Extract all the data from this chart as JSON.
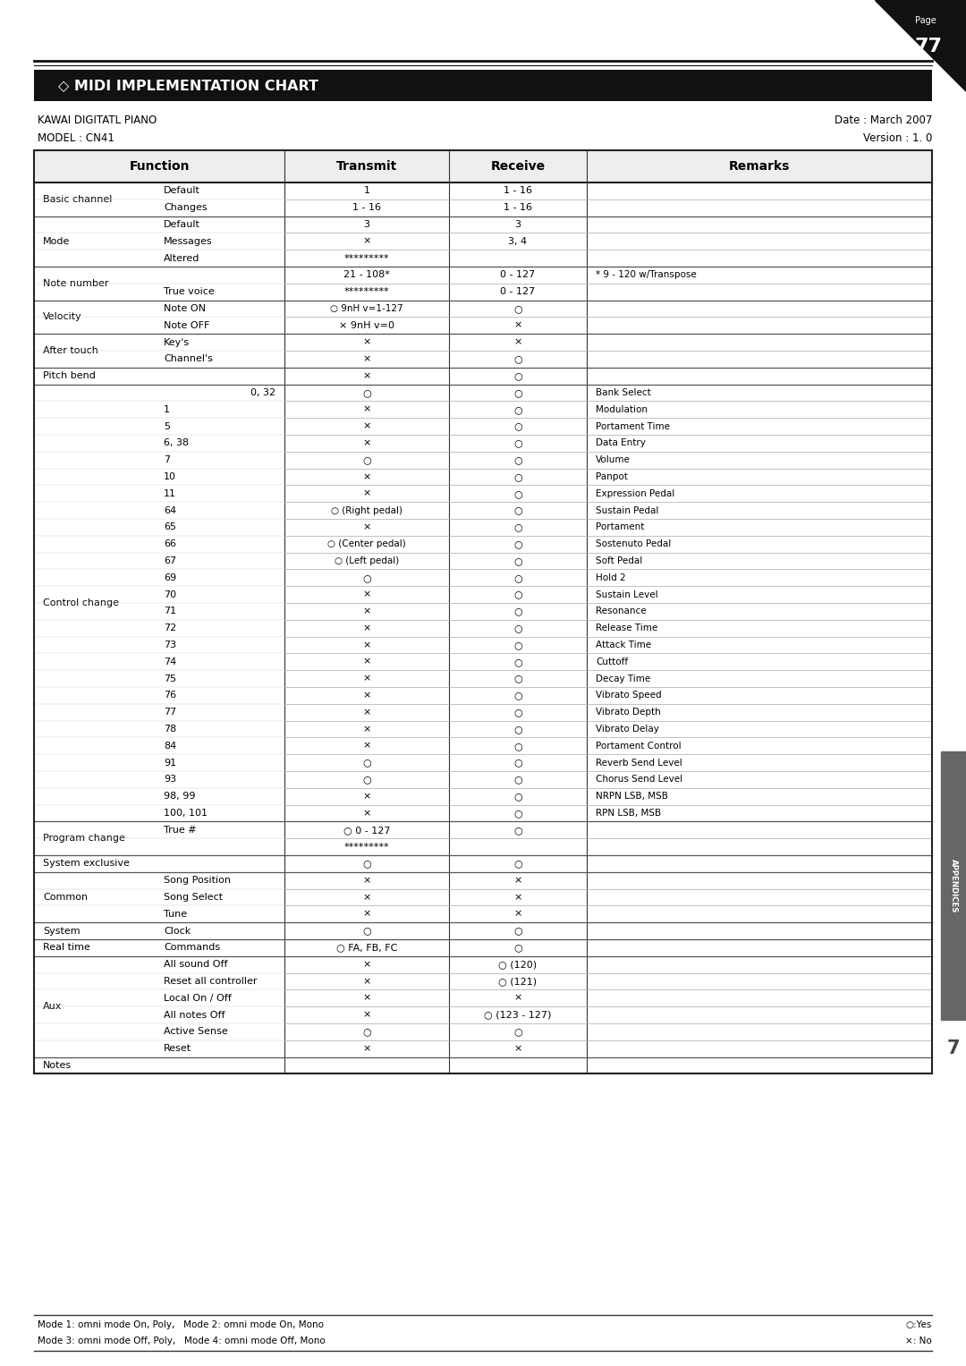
{
  "page_num": "77",
  "title": "◇ MIDI IMPLEMENTATION CHART",
  "device_name": "KAWAI DIGITATL PIANO",
  "model": "MODEL : CN41",
  "date": "Date : March 2007",
  "version": "Version : 1. 0",
  "col_headers": [
    "Function",
    "Transmit",
    "Receive",
    "Remarks"
  ],
  "rows": [
    {
      "func1": "Basic channel",
      "func2": "Default",
      "transmit": "1",
      "receive": "1 - 16",
      "remarks": ""
    },
    {
      "func1": "",
      "func2": "Changes",
      "transmit": "1 - 16",
      "receive": "1 - 16",
      "remarks": ""
    },
    {
      "func1": "Mode",
      "func2": "Default",
      "transmit": "3",
      "receive": "3",
      "remarks": ""
    },
    {
      "func1": "",
      "func2": "Messages",
      "transmit": "×",
      "receive": "3, 4",
      "remarks": ""
    },
    {
      "func1": "",
      "func2": "Altered",
      "transmit": "*********",
      "receive": "",
      "remarks": ""
    },
    {
      "func1": "Note number",
      "func2": "",
      "transmit": "21 - 108*",
      "receive": "0 - 127",
      "remarks": "* 9 - 120 w/Transpose"
    },
    {
      "func1": "",
      "func2": "True voice",
      "transmit": "*********",
      "receive": "0 - 127",
      "remarks": ""
    },
    {
      "func1": "Velocity",
      "func2": "Note ON",
      "transmit": "○ 9nH v=1-127",
      "receive": "○",
      "remarks": ""
    },
    {
      "func1": "",
      "func2": "Note OFF",
      "transmit": "× 9nH v=0",
      "receive": "×",
      "remarks": ""
    },
    {
      "func1": "After touch",
      "func2": "Key's",
      "transmit": "×",
      "receive": "×",
      "remarks": ""
    },
    {
      "func1": "",
      "func2": "Channel's",
      "transmit": "×",
      "receive": "○",
      "remarks": ""
    },
    {
      "func1": "Pitch bend",
      "func2": "",
      "transmit": "×",
      "receive": "○",
      "remarks": ""
    },
    {
      "func1": "Control change",
      "func2": "0, 32",
      "transmit": "○",
      "receive": "○",
      "remarks": "Bank Select"
    },
    {
      "func1": "",
      "func2": "1",
      "transmit": "×",
      "receive": "○",
      "remarks": "Modulation"
    },
    {
      "func1": "",
      "func2": "5",
      "transmit": "×",
      "receive": "○",
      "remarks": "Portament Time"
    },
    {
      "func1": "",
      "func2": "6, 38",
      "transmit": "×",
      "receive": "○",
      "remarks": "Data Entry"
    },
    {
      "func1": "",
      "func2": "7",
      "transmit": "○",
      "receive": "○",
      "remarks": "Volume"
    },
    {
      "func1": "",
      "func2": "10",
      "transmit": "×",
      "receive": "○",
      "remarks": "Panpot"
    },
    {
      "func1": "",
      "func2": "11",
      "transmit": "×",
      "receive": "○",
      "remarks": "Expression Pedal"
    },
    {
      "func1": "",
      "func2": "64",
      "transmit": "○ (Right pedal)",
      "receive": "○",
      "remarks": "Sustain Pedal"
    },
    {
      "func1": "",
      "func2": "65",
      "transmit": "×",
      "receive": "○",
      "remarks": "Portament"
    },
    {
      "func1": "",
      "func2": "66",
      "transmit": "○ (Center pedal)",
      "receive": "○",
      "remarks": "Sostenuto Pedal"
    },
    {
      "func1": "",
      "func2": "67",
      "transmit": "○ (Left pedal)",
      "receive": "○",
      "remarks": "Soft Pedal"
    },
    {
      "func1": "",
      "func2": "69",
      "transmit": "○",
      "receive": "○",
      "remarks": "Hold 2"
    },
    {
      "func1": "",
      "func2": "70",
      "transmit": "×",
      "receive": "○",
      "remarks": "Sustain Level"
    },
    {
      "func1": "",
      "func2": "71",
      "transmit": "×",
      "receive": "○",
      "remarks": "Resonance"
    },
    {
      "func1": "",
      "func2": "72",
      "transmit": "×",
      "receive": "○",
      "remarks": "Release Time"
    },
    {
      "func1": "",
      "func2": "73",
      "transmit": "×",
      "receive": "○",
      "remarks": "Attack Time"
    },
    {
      "func1": "",
      "func2": "74",
      "transmit": "×",
      "receive": "○",
      "remarks": "Cuttoff"
    },
    {
      "func1": "",
      "func2": "75",
      "transmit": "×",
      "receive": "○",
      "remarks": "Decay Time"
    },
    {
      "func1": "",
      "func2": "76",
      "transmit": "×",
      "receive": "○",
      "remarks": "Vibrato Speed"
    },
    {
      "func1": "",
      "func2": "77",
      "transmit": "×",
      "receive": "○",
      "remarks": "Vibrato Depth"
    },
    {
      "func1": "",
      "func2": "78",
      "transmit": "×",
      "receive": "○",
      "remarks": "Vibrato Delay"
    },
    {
      "func1": "",
      "func2": "84",
      "transmit": "×",
      "receive": "○",
      "remarks": "Portament Control"
    },
    {
      "func1": "",
      "func2": "91",
      "transmit": "○",
      "receive": "○",
      "remarks": "Reverb Send Level"
    },
    {
      "func1": "",
      "func2": "93",
      "transmit": "○",
      "receive": "○",
      "remarks": "Chorus Send Level"
    },
    {
      "func1": "",
      "func2": "98, 99",
      "transmit": "×",
      "receive": "○",
      "remarks": "NRPN LSB, MSB"
    },
    {
      "func1": "",
      "func2": "100, 101",
      "transmit": "×",
      "receive": "○",
      "remarks": "RPN LSB, MSB"
    },
    {
      "func1": "Program change",
      "func2": "True #",
      "transmit": "○ 0 - 127",
      "receive": "○",
      "remarks": ""
    },
    {
      "func1": "",
      "func2": "",
      "transmit": "*********",
      "receive": "",
      "remarks": ""
    },
    {
      "func1": "System exclusive",
      "func2": "",
      "transmit": "○",
      "receive": "○",
      "remarks": ""
    },
    {
      "func1": "Common",
      "func2": "Song Position",
      "transmit": "×",
      "receive": "×",
      "remarks": ""
    },
    {
      "func1": "",
      "func2": "Song Select",
      "transmit": "×",
      "receive": "×",
      "remarks": ""
    },
    {
      "func1": "",
      "func2": "Tune",
      "transmit": "×",
      "receive": "×",
      "remarks": ""
    },
    {
      "func1": "System",
      "func2": "Clock",
      "transmit": "○",
      "receive": "○",
      "remarks": ""
    },
    {
      "func1": "Real time",
      "func2": "Commands",
      "transmit": "○ FA, FB, FC",
      "receive": "○",
      "remarks": ""
    },
    {
      "func1": "Aux",
      "func2": "All sound Off",
      "transmit": "×",
      "receive": "○ (120)",
      "remarks": ""
    },
    {
      "func1": "",
      "func2": "Reset all controller",
      "transmit": "×",
      "receive": "○ (121)",
      "remarks": ""
    },
    {
      "func1": "",
      "func2": "Local On / Off",
      "transmit": "×",
      "receive": "×",
      "remarks": ""
    },
    {
      "func1": "",
      "func2": "All notes Off",
      "transmit": "×",
      "receive": "○ (123 - 127)",
      "remarks": ""
    },
    {
      "func1": "",
      "func2": "Active Sense",
      "transmit": "○",
      "receive": "○",
      "remarks": ""
    },
    {
      "func1": "",
      "func2": "Reset",
      "transmit": "×",
      "receive": "×",
      "remarks": ""
    },
    {
      "func1": "Notes",
      "func2": "",
      "transmit": "",
      "receive": "",
      "remarks": ""
    }
  ],
  "footer_left1": "Mode 1: omni mode On, Poly,   Mode 2: omni mode On, Mono",
  "footer_left2": "Mode 3: omni mode Off, Poly,   Mode 4: omni mode Off, Mono",
  "footer_right1": "○:Yes",
  "footer_right2": "×: No",
  "bg_color": "#ffffff",
  "header_bg": "#1a1a1a",
  "table_border": "#333333",
  "appendices_bg": "#555555"
}
